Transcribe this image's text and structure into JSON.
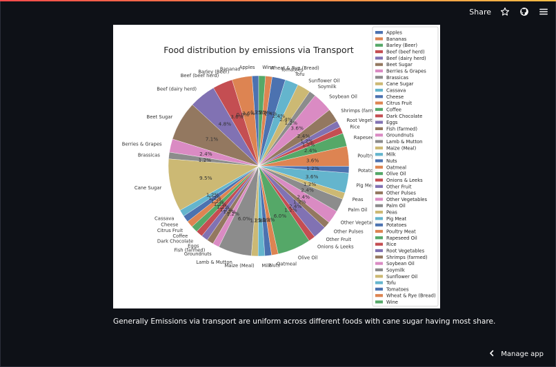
{
  "header": {
    "share_label": "Share",
    "icons": [
      "star-icon",
      "github-icon",
      "hamburger-menu-icon"
    ]
  },
  "caption": "Generally Emissions via transport are uniform across different foods with cane sugar having most share.",
  "footer": {
    "manage_label": "Manage app",
    "icon": "chevron-left-icon"
  },
  "chart_data": {
    "type": "pie",
    "title": "Food distribution by emissions via Transport",
    "legend_position": "right",
    "start_angle": 90,
    "counterclockwise": true,
    "slices": [
      {
        "label": "Apples",
        "value": 1.2,
        "pct": "1.2%",
        "color": "#4c72b0"
      },
      {
        "label": "Bananas",
        "value": 3.6,
        "pct": "3.6%",
        "color": "#dd8452"
      },
      {
        "label": "Barley (Beer)",
        "value": 0.0,
        "pct": "0.0%",
        "color": "#55a868"
      },
      {
        "label": "Beef (beef herd)",
        "value": 3.6,
        "pct": "3.6%",
        "color": "#c44e52"
      },
      {
        "label": "Beef (dairy herd)",
        "value": 4.8,
        "pct": "4.8%",
        "color": "#8172b3"
      },
      {
        "label": "Beet Sugar",
        "value": 7.1,
        "pct": "7.1%",
        "color": "#937860"
      },
      {
        "label": "Berries & Grapes",
        "value": 2.4,
        "pct": "2.4%",
        "color": "#da8bc3"
      },
      {
        "label": "Brassicas",
        "value": 1.2,
        "pct": "1.2%",
        "color": "#8c8c8c"
      },
      {
        "label": "Cane Sugar",
        "value": 9.5,
        "pct": "9.5%",
        "color": "#ccb974"
      },
      {
        "label": "Cassava",
        "value": 1.2,
        "pct": "1.2%",
        "color": "#64b5cd"
      },
      {
        "label": "Cheese",
        "value": 1.2,
        "pct": "1.2%",
        "color": "#4c72b0"
      },
      {
        "label": "Citrus Fruit",
        "value": 1.2,
        "pct": "1.2%",
        "color": "#dd8452"
      },
      {
        "label": "Coffee",
        "value": 1.2,
        "pct": "1.2%",
        "color": "#55a868"
      },
      {
        "label": "Dark Chocolate",
        "value": 1.2,
        "pct": "1.2%",
        "color": "#c44e52"
      },
      {
        "label": "Eggs",
        "value": 1.2,
        "pct": "1.2%",
        "color": "#8172b3"
      },
      {
        "label": "Fish (farmed)",
        "value": 1.2,
        "pct": "1.2%",
        "color": "#937860"
      },
      {
        "label": "Groundnuts",
        "value": 1.2,
        "pct": "1.2%",
        "color": "#da8bc3"
      },
      {
        "label": "Lamb & Mutton",
        "value": 6.0,
        "pct": "6.0%",
        "color": "#8c8c8c"
      },
      {
        "label": "Maize (Meal)",
        "value": 1.2,
        "pct": "1.2%",
        "color": "#ccb974"
      },
      {
        "label": "Milk",
        "value": 1.2,
        "pct": "1.2%",
        "color": "#64b5cd"
      },
      {
        "label": "Nuts",
        "value": 1.2,
        "pct": "1.2%",
        "color": "#4c72b0"
      },
      {
        "label": "Oatmeal",
        "value": 1.2,
        "pct": "1.2%",
        "color": "#dd8452"
      },
      {
        "label": "Olive Oil",
        "value": 6.0,
        "pct": "6.0%",
        "color": "#55a868"
      },
      {
        "label": "Onions & Leeks",
        "value": 1.2,
        "pct": "1.2%",
        "color": "#c44e52"
      },
      {
        "label": "Other Fruit",
        "value": 2.4,
        "pct": "2.4%",
        "color": "#8172b3"
      },
      {
        "label": "Other Pulses",
        "value": 1.2,
        "pct": "1.2%",
        "color": "#937860"
      },
      {
        "label": "Other Vegetables",
        "value": 2.4,
        "pct": "2.4%",
        "color": "#da8bc3"
      },
      {
        "label": "Palm Oil",
        "value": 2.4,
        "pct": "2.4%",
        "color": "#8c8c8c"
      },
      {
        "label": "Peas",
        "value": 1.2,
        "pct": "1.2%",
        "color": "#ccb974"
      },
      {
        "label": "Pig Meat",
        "value": 3.6,
        "pct": "3.6%",
        "color": "#64b5cd"
      },
      {
        "label": "Potatoes",
        "value": 1.2,
        "pct": "1.2%",
        "color": "#4c72b0"
      },
      {
        "label": "Poultry Meat",
        "value": 3.6,
        "pct": "3.6%",
        "color": "#dd8452"
      },
      {
        "label": "Rapeseed Oil",
        "value": 2.4,
        "pct": "2.4%",
        "color": "#55a868"
      },
      {
        "label": "Rice",
        "value": 1.2,
        "pct": "1.2%",
        "color": "#c44e52"
      },
      {
        "label": "Root Vegetables",
        "value": 1.2,
        "pct": "1.2%",
        "color": "#8172b3"
      },
      {
        "label": "Shrimps (farmed)",
        "value": 2.4,
        "pct": "2.4%",
        "color": "#937860"
      },
      {
        "label": "Soybean Oil",
        "value": 3.6,
        "pct": "3.6%",
        "color": "#da8bc3"
      },
      {
        "label": "Soymilk",
        "value": 1.2,
        "pct": "1.2%",
        "color": "#8c8c8c"
      },
      {
        "label": "Sunflower Oil",
        "value": 2.4,
        "pct": "2.4%",
        "color": "#ccb974"
      },
      {
        "label": "Tofu",
        "value": 2.4,
        "pct": "2.4%",
        "color": "#64b5cd"
      },
      {
        "label": "Tomatoes",
        "value": 2.4,
        "pct": "2.4%",
        "color": "#4c72b0"
      },
      {
        "label": "Wheat & Rye (Bread)",
        "value": 1.2,
        "pct": "1.2%",
        "color": "#dd8452"
      },
      {
        "label": "Wine",
        "value": 1.2,
        "pct": "1.2%",
        "color": "#55a868"
      }
    ]
  }
}
